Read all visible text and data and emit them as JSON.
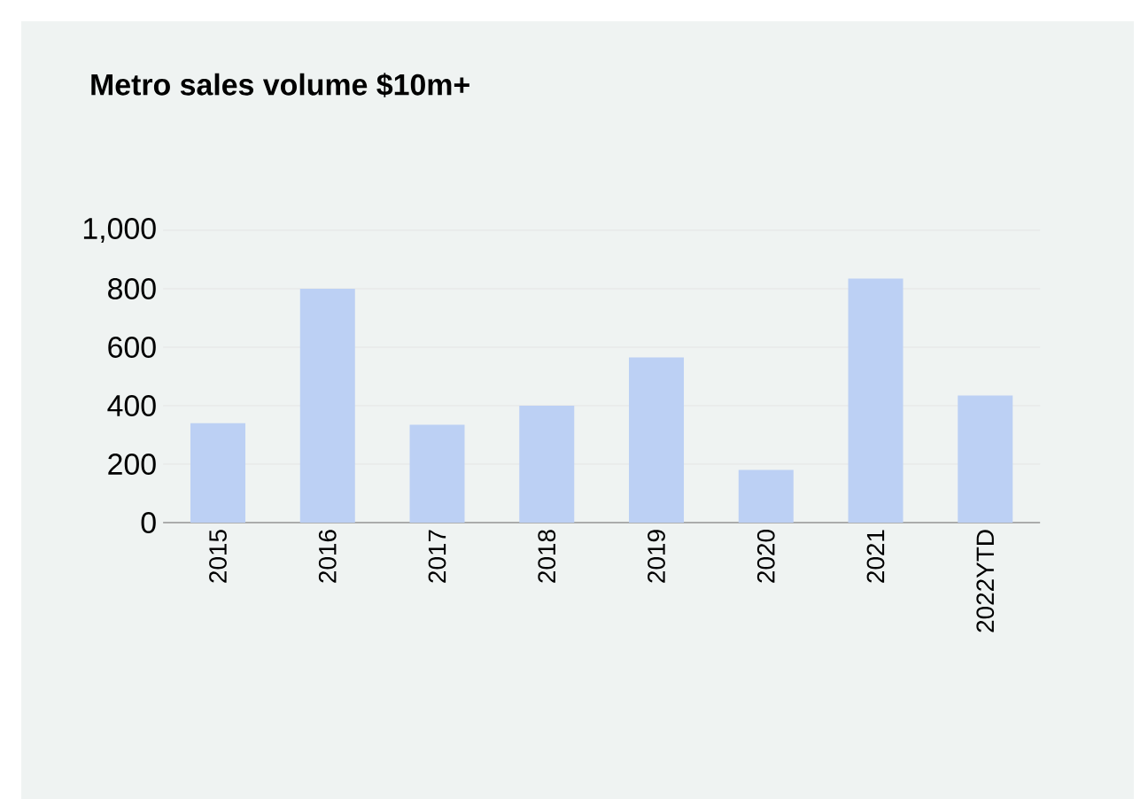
{
  "chart_data": {
    "type": "bar",
    "title": "Metro sales volume $10m+",
    "categories": [
      "2015",
      "2016",
      "2017",
      "2018",
      "2019",
      "2020",
      "2021",
      "2022YTD"
    ],
    "values": [
      340,
      800,
      335,
      400,
      565,
      180,
      835,
      435
    ],
    "color": "#bcd0f4",
    "ylim": [
      0,
      1000
    ],
    "yticks": [
      0,
      200,
      400,
      600,
      800,
      {
        "value": 1000,
        "label": "1,000"
      }
    ],
    "grid": "y"
  }
}
